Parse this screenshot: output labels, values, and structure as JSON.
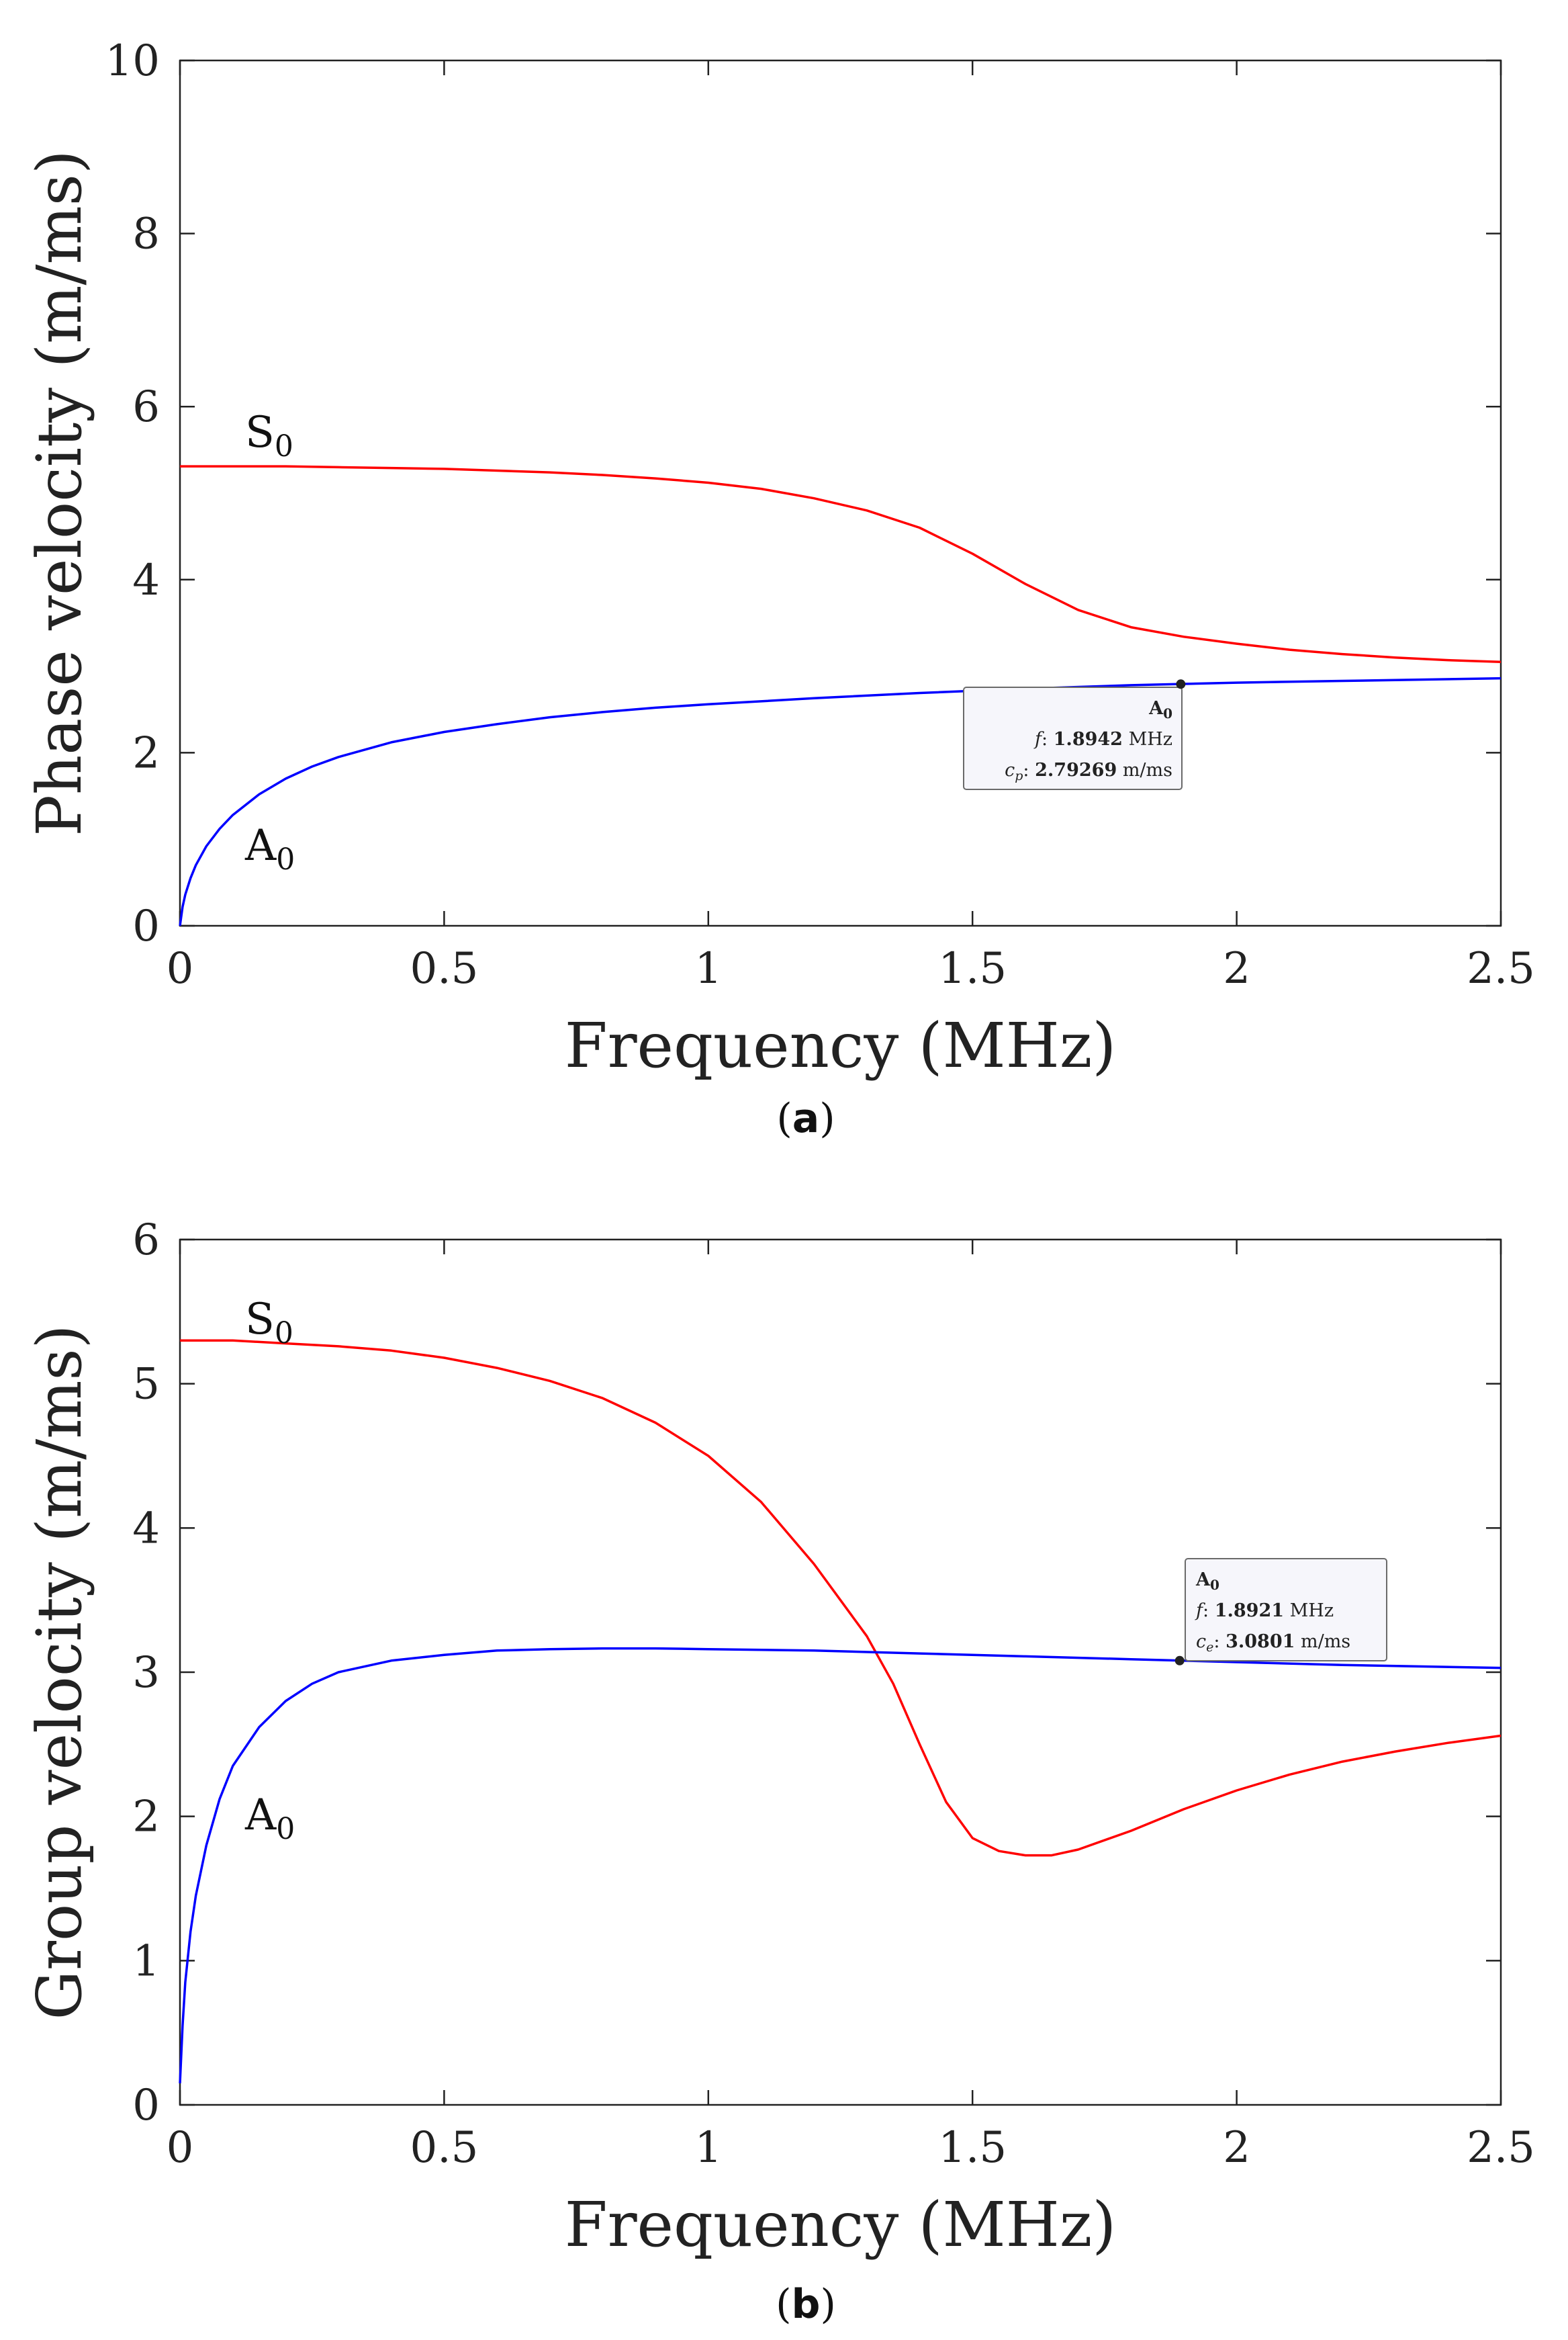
{
  "chart_data": [
    {
      "type": "line",
      "panel_label": "(a)",
      "xlabel": "Frequency (MHz)",
      "ylabel": "Phase velocity (m/ms)",
      "xlim": [
        0,
        2.5
      ],
      "ylim": [
        0,
        10
      ],
      "xticks": [
        0,
        0.5,
        1,
        1.5,
        2,
        2.5
      ],
      "xtick_labels": [
        "0",
        "0.5",
        "1",
        "1.5",
        "2",
        "2.5"
      ],
      "yticks": [
        0,
        2,
        4,
        6,
        8,
        10
      ],
      "ytick_labels": [
        "0",
        "2",
        "4",
        "6",
        "8",
        "10"
      ],
      "grid": false,
      "series": [
        {
          "name": "S0",
          "label": "S",
          "label_sub": "0",
          "color": "#ff0000",
          "x": [
            0,
            0.1,
            0.2,
            0.3,
            0.4,
            0.5,
            0.6,
            0.7,
            0.8,
            0.9,
            1.0,
            1.1,
            1.2,
            1.3,
            1.4,
            1.5,
            1.6,
            1.7,
            1.8,
            1.9,
            2.0,
            2.1,
            2.2,
            2.3,
            2.4,
            2.5
          ],
          "y": [
            5.31,
            5.31,
            5.31,
            5.3,
            5.29,
            5.28,
            5.26,
            5.24,
            5.21,
            5.17,
            5.12,
            5.05,
            4.94,
            4.8,
            4.6,
            4.3,
            3.95,
            3.65,
            3.45,
            3.34,
            3.26,
            3.19,
            3.14,
            3.1,
            3.07,
            3.05
          ]
        },
        {
          "name": "A0",
          "label": "A",
          "label_sub": "0",
          "color": "#0000ff",
          "x": [
            0,
            0.005,
            0.01,
            0.02,
            0.03,
            0.05,
            0.075,
            0.1,
            0.15,
            0.2,
            0.25,
            0.3,
            0.4,
            0.5,
            0.6,
            0.7,
            0.8,
            0.9,
            1.0,
            1.2,
            1.4,
            1.6,
            1.8,
            2.0,
            2.2,
            2.5
          ],
          "y": [
            0,
            0.22,
            0.36,
            0.55,
            0.7,
            0.92,
            1.12,
            1.28,
            1.52,
            1.7,
            1.84,
            1.95,
            2.12,
            2.24,
            2.33,
            2.41,
            2.47,
            2.52,
            2.56,
            2.63,
            2.69,
            2.74,
            2.78,
            2.81,
            2.83,
            2.86
          ]
        }
      ],
      "datatip": {
        "series_label": "A",
        "series_sub": "0",
        "f_label": "f",
        "f_value": "1.8942",
        "f_unit": "MHz",
        "c_label": "c",
        "c_sub": "p",
        "c_value": "2.79269",
        "c_unit": "m/ms",
        "x": 1.8942,
        "y": 2.79269
      }
    },
    {
      "type": "line",
      "panel_label": "(b)",
      "xlabel": "Frequency (MHz)",
      "ylabel": "Group velocity (m/ms)",
      "xlim": [
        0,
        2.5
      ],
      "ylim": [
        0,
        6
      ],
      "xticks": [
        0,
        0.5,
        1,
        1.5,
        2,
        2.5
      ],
      "xtick_labels": [
        "0",
        "0.5",
        "1",
        "1.5",
        "2",
        "2.5"
      ],
      "yticks": [
        0,
        1,
        2,
        3,
        4,
        5,
        6
      ],
      "ytick_labels": [
        "0",
        "1",
        "2",
        "3",
        "4",
        "5",
        "6"
      ],
      "grid": false,
      "series": [
        {
          "name": "S0",
          "label": "S",
          "label_sub": "0",
          "color": "#ff0000",
          "x": [
            0,
            0.1,
            0.2,
            0.3,
            0.4,
            0.5,
            0.6,
            0.7,
            0.8,
            0.9,
            1.0,
            1.1,
            1.2,
            1.3,
            1.35,
            1.4,
            1.45,
            1.5,
            1.55,
            1.6,
            1.65,
            1.7,
            1.8,
            1.9,
            2.0,
            2.1,
            2.2,
            2.3,
            2.4,
            2.5
          ],
          "y": [
            5.3,
            5.3,
            5.28,
            5.26,
            5.23,
            5.18,
            5.11,
            5.02,
            4.9,
            4.73,
            4.5,
            4.18,
            3.75,
            3.25,
            2.92,
            2.5,
            2.1,
            1.85,
            1.76,
            1.73,
            1.73,
            1.77,
            1.9,
            2.05,
            2.18,
            2.29,
            2.38,
            2.45,
            2.51,
            2.56
          ]
        },
        {
          "name": "A0",
          "label": "A",
          "label_sub": "0",
          "color": "#0000ff",
          "x": [
            0,
            0.005,
            0.01,
            0.02,
            0.03,
            0.05,
            0.075,
            0.1,
            0.15,
            0.2,
            0.25,
            0.3,
            0.4,
            0.5,
            0.6,
            0.7,
            0.8,
            0.9,
            1.0,
            1.2,
            1.4,
            1.6,
            1.8,
            2.0,
            2.2,
            2.5
          ],
          "y": [
            0.15,
            0.55,
            0.85,
            1.2,
            1.45,
            1.8,
            2.12,
            2.35,
            2.62,
            2.8,
            2.92,
            3.0,
            3.08,
            3.12,
            3.15,
            3.16,
            3.165,
            3.165,
            3.16,
            3.15,
            3.13,
            3.11,
            3.09,
            3.07,
            3.05,
            3.03
          ]
        }
      ],
      "datatip": {
        "series_label": "A",
        "series_sub": "0",
        "f_label": "f",
        "f_value": "1.8921",
        "f_unit": "MHz",
        "c_label": "c",
        "c_sub": "e",
        "c_value": "3.0801",
        "c_unit": "m/ms",
        "x": 1.8921,
        "y": 3.0801
      }
    }
  ]
}
